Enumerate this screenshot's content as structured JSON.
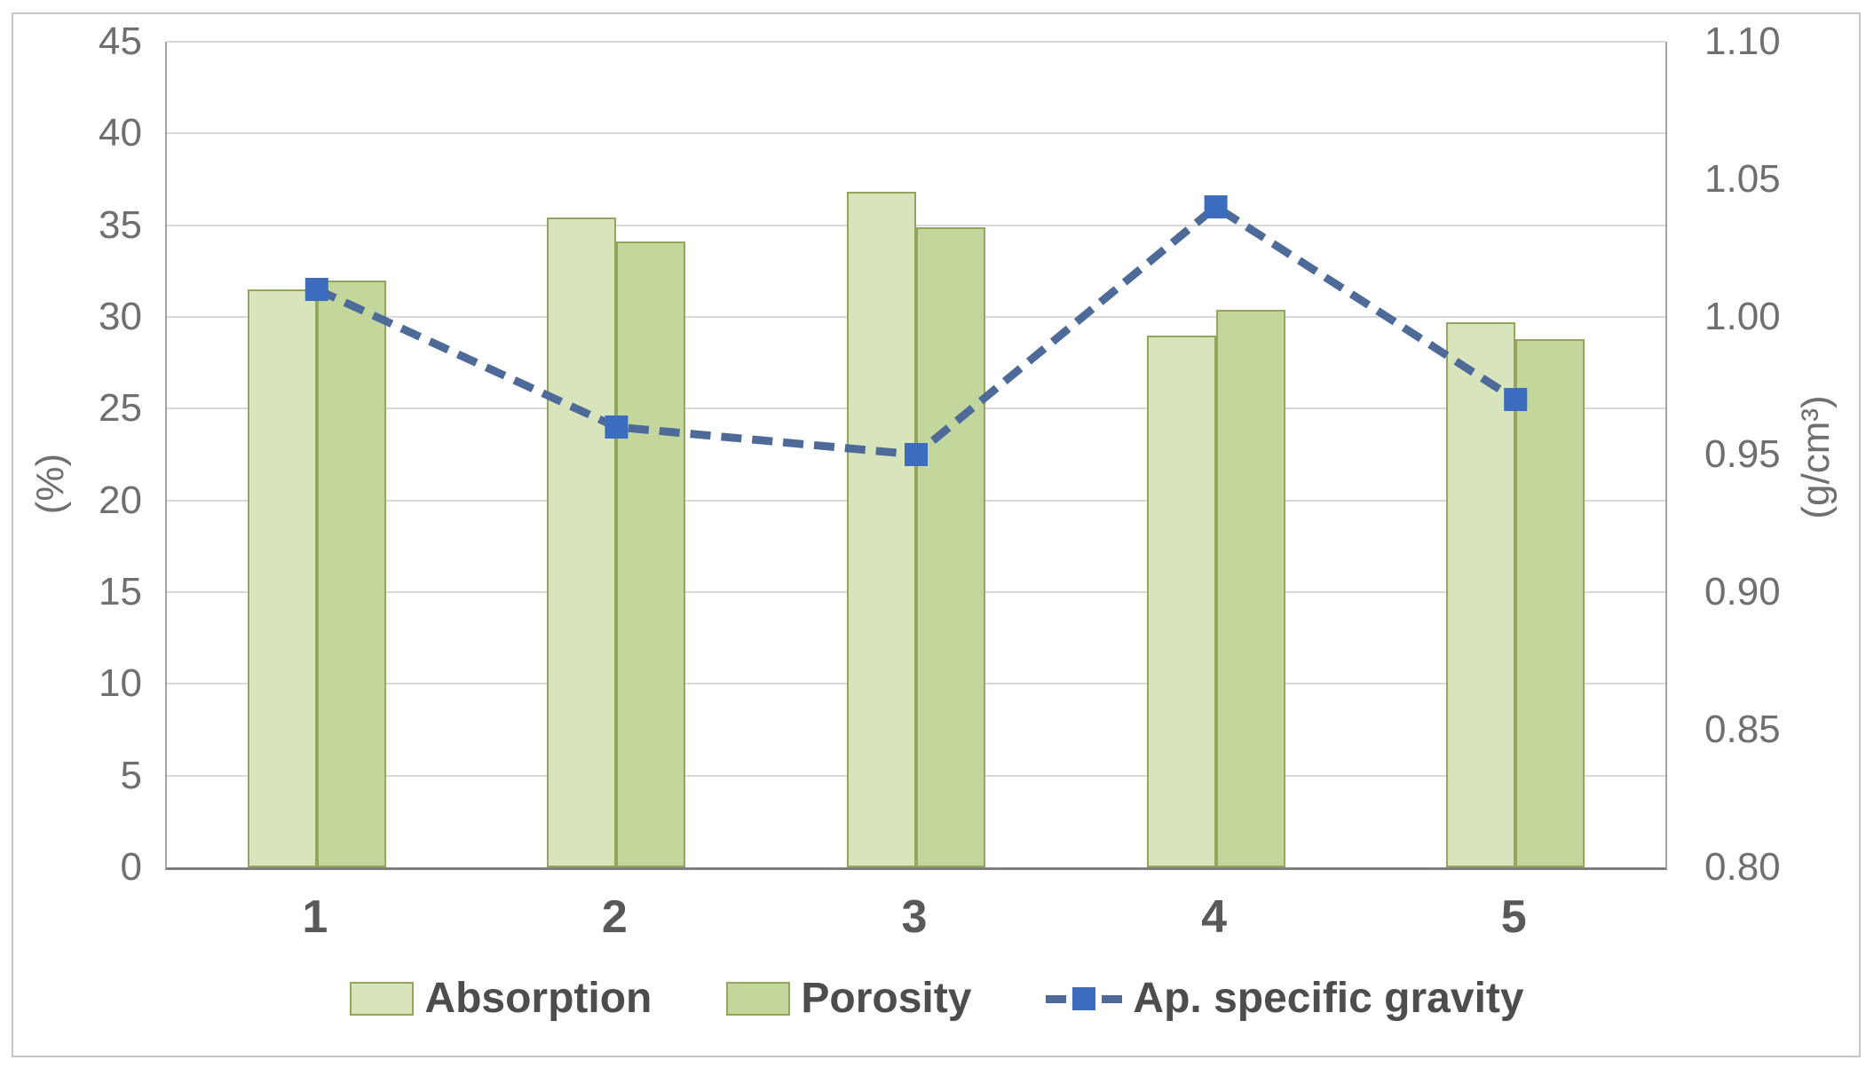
{
  "chart_data": {
    "type": "combo-bar-line",
    "categories": [
      "1",
      "2",
      "3",
      "4",
      "5"
    ],
    "series": [
      {
        "name": "Absorption",
        "type": "bar",
        "axis": "left",
        "color": "#d7e4bc",
        "border_color": "#94a55e",
        "values": [
          31.5,
          35.4,
          36.8,
          29.0,
          29.7
        ]
      },
      {
        "name": "Porosity",
        "type": "bar",
        "axis": "left",
        "color": "#c3d69b",
        "border_color": "#94a55e",
        "values": [
          32.0,
          34.1,
          34.9,
          30.4,
          28.8
        ]
      },
      {
        "name": "Ap. specific gravity",
        "type": "line",
        "axis": "right",
        "color": "#4d6a99",
        "marker_color": "#3c6cbd",
        "line_style": "dashed",
        "marker": "square",
        "values": [
          1.01,
          0.96,
          0.95,
          1.04,
          0.97
        ]
      }
    ],
    "left_axis": {
      "label": "(%)",
      "min": 0,
      "max": 45,
      "step": 5,
      "tick_labels": [
        "0",
        "5",
        "10",
        "15",
        "20",
        "25",
        "30",
        "35",
        "40",
        "45"
      ]
    },
    "right_axis": {
      "label": "(g/cm³)",
      "min": 0.8,
      "max": 1.1,
      "step": 0.05,
      "tick_labels": [
        "0.80",
        "0.85",
        "0.90",
        "0.95",
        "1.00",
        "1.05",
        "1.10"
      ]
    },
    "grid": "horizontal-only",
    "legend_position": "bottom"
  },
  "style_colors": {
    "gridline": "#d8d8d8",
    "axis_line": "#a3a3a3",
    "baseline": "#7f7f7f",
    "tick_text": "#6f6f6f",
    "category_text": "#595959",
    "legend_text": "#4d4d4d",
    "frame_border": "#c6c6c6",
    "background": "#ffffff"
  }
}
